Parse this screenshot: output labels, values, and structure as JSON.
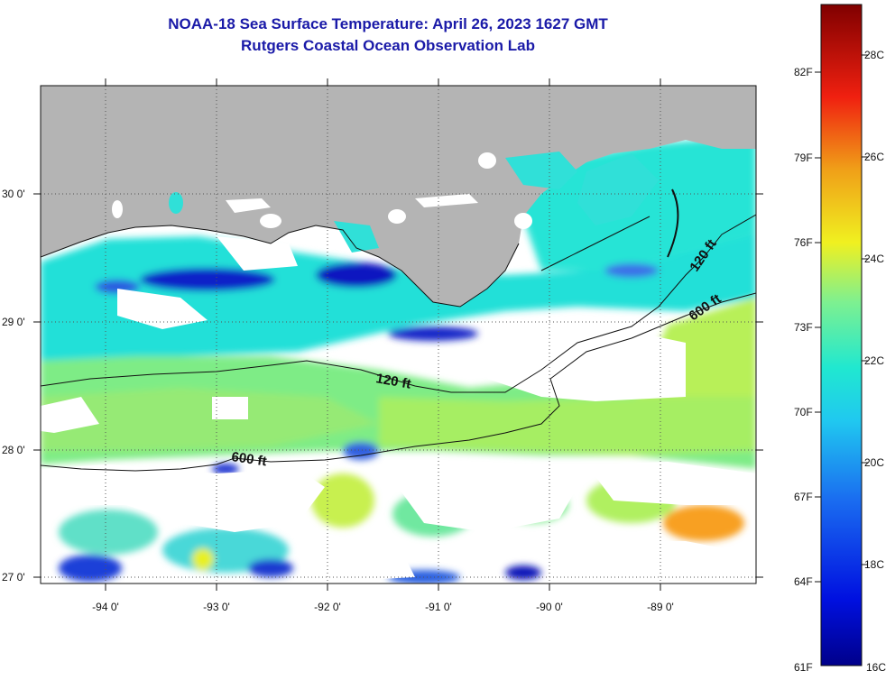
{
  "title": {
    "line1": "NOAA-18 Sea Surface Temperature:  April 26, 2023 1627 GMT",
    "line2": "Rutgers Coastal Ocean Observation Lab"
  },
  "map": {
    "lon_labels": [
      "-94 0'",
      "-93 0'",
      "-92 0'",
      "-91 0'",
      "-90 0'",
      "-89 0'"
    ],
    "lat_labels": [
      "30 0'",
      "29 0'",
      "28 0'",
      "27 0'"
    ],
    "contour_labels": [
      "120 ft",
      "600 ft",
      "120 ft",
      "600 ft"
    ],
    "colors": {
      "land": "#b4b4b4",
      "cloud": "#ffffff",
      "water_cyan": "#20e0d8",
      "water_green": "#5ee89a",
      "water_yellow": "#c8f050",
      "water_blue": "#0a1ac8",
      "water_orange": "#f8a020"
    }
  },
  "colorbar": {
    "fahrenheit_labels": [
      "82F",
      "79F",
      "76F",
      "73F",
      "70F",
      "67F",
      "64F",
      "61F"
    ],
    "celsius_labels": [
      "28C",
      "26C",
      "24C",
      "22C",
      "20C",
      "18C",
      "16C"
    ],
    "min_c": 16,
    "max_c": 29
  }
}
